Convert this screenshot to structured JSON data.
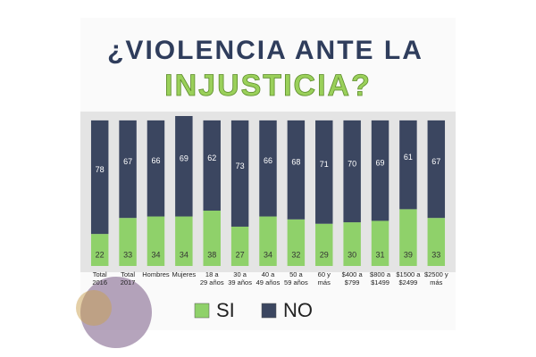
{
  "chart_data": {
    "type": "stacked_bar",
    "title": "¿VIOLENCIA ANTE LA",
    "subtitle": "INJUSTICIA?",
    "categories": [
      "Total 2016",
      "Total 2017",
      "Hombres",
      "Mujeres",
      "18 a 29 años",
      "30 a 39 años",
      "40 a 49 años",
      "50 a 59 años",
      "60 y más",
      "$400 a $799",
      "$800 a $1499",
      "$1500 a $2499",
      "$2500 y más"
    ],
    "series": [
      {
        "name": "SI",
        "color": "#8fd16a",
        "values": [
          22,
          33,
          34,
          34,
          38,
          27,
          34,
          32,
          29,
          30,
          31,
          39,
          33
        ]
      },
      {
        "name": "NO",
        "color": "#3b4660",
        "values": [
          78,
          67,
          66,
          69,
          62,
          73,
          66,
          68,
          71,
          70,
          69,
          61,
          67
        ]
      }
    ],
    "ylim": [
      0,
      103
    ]
  }
}
